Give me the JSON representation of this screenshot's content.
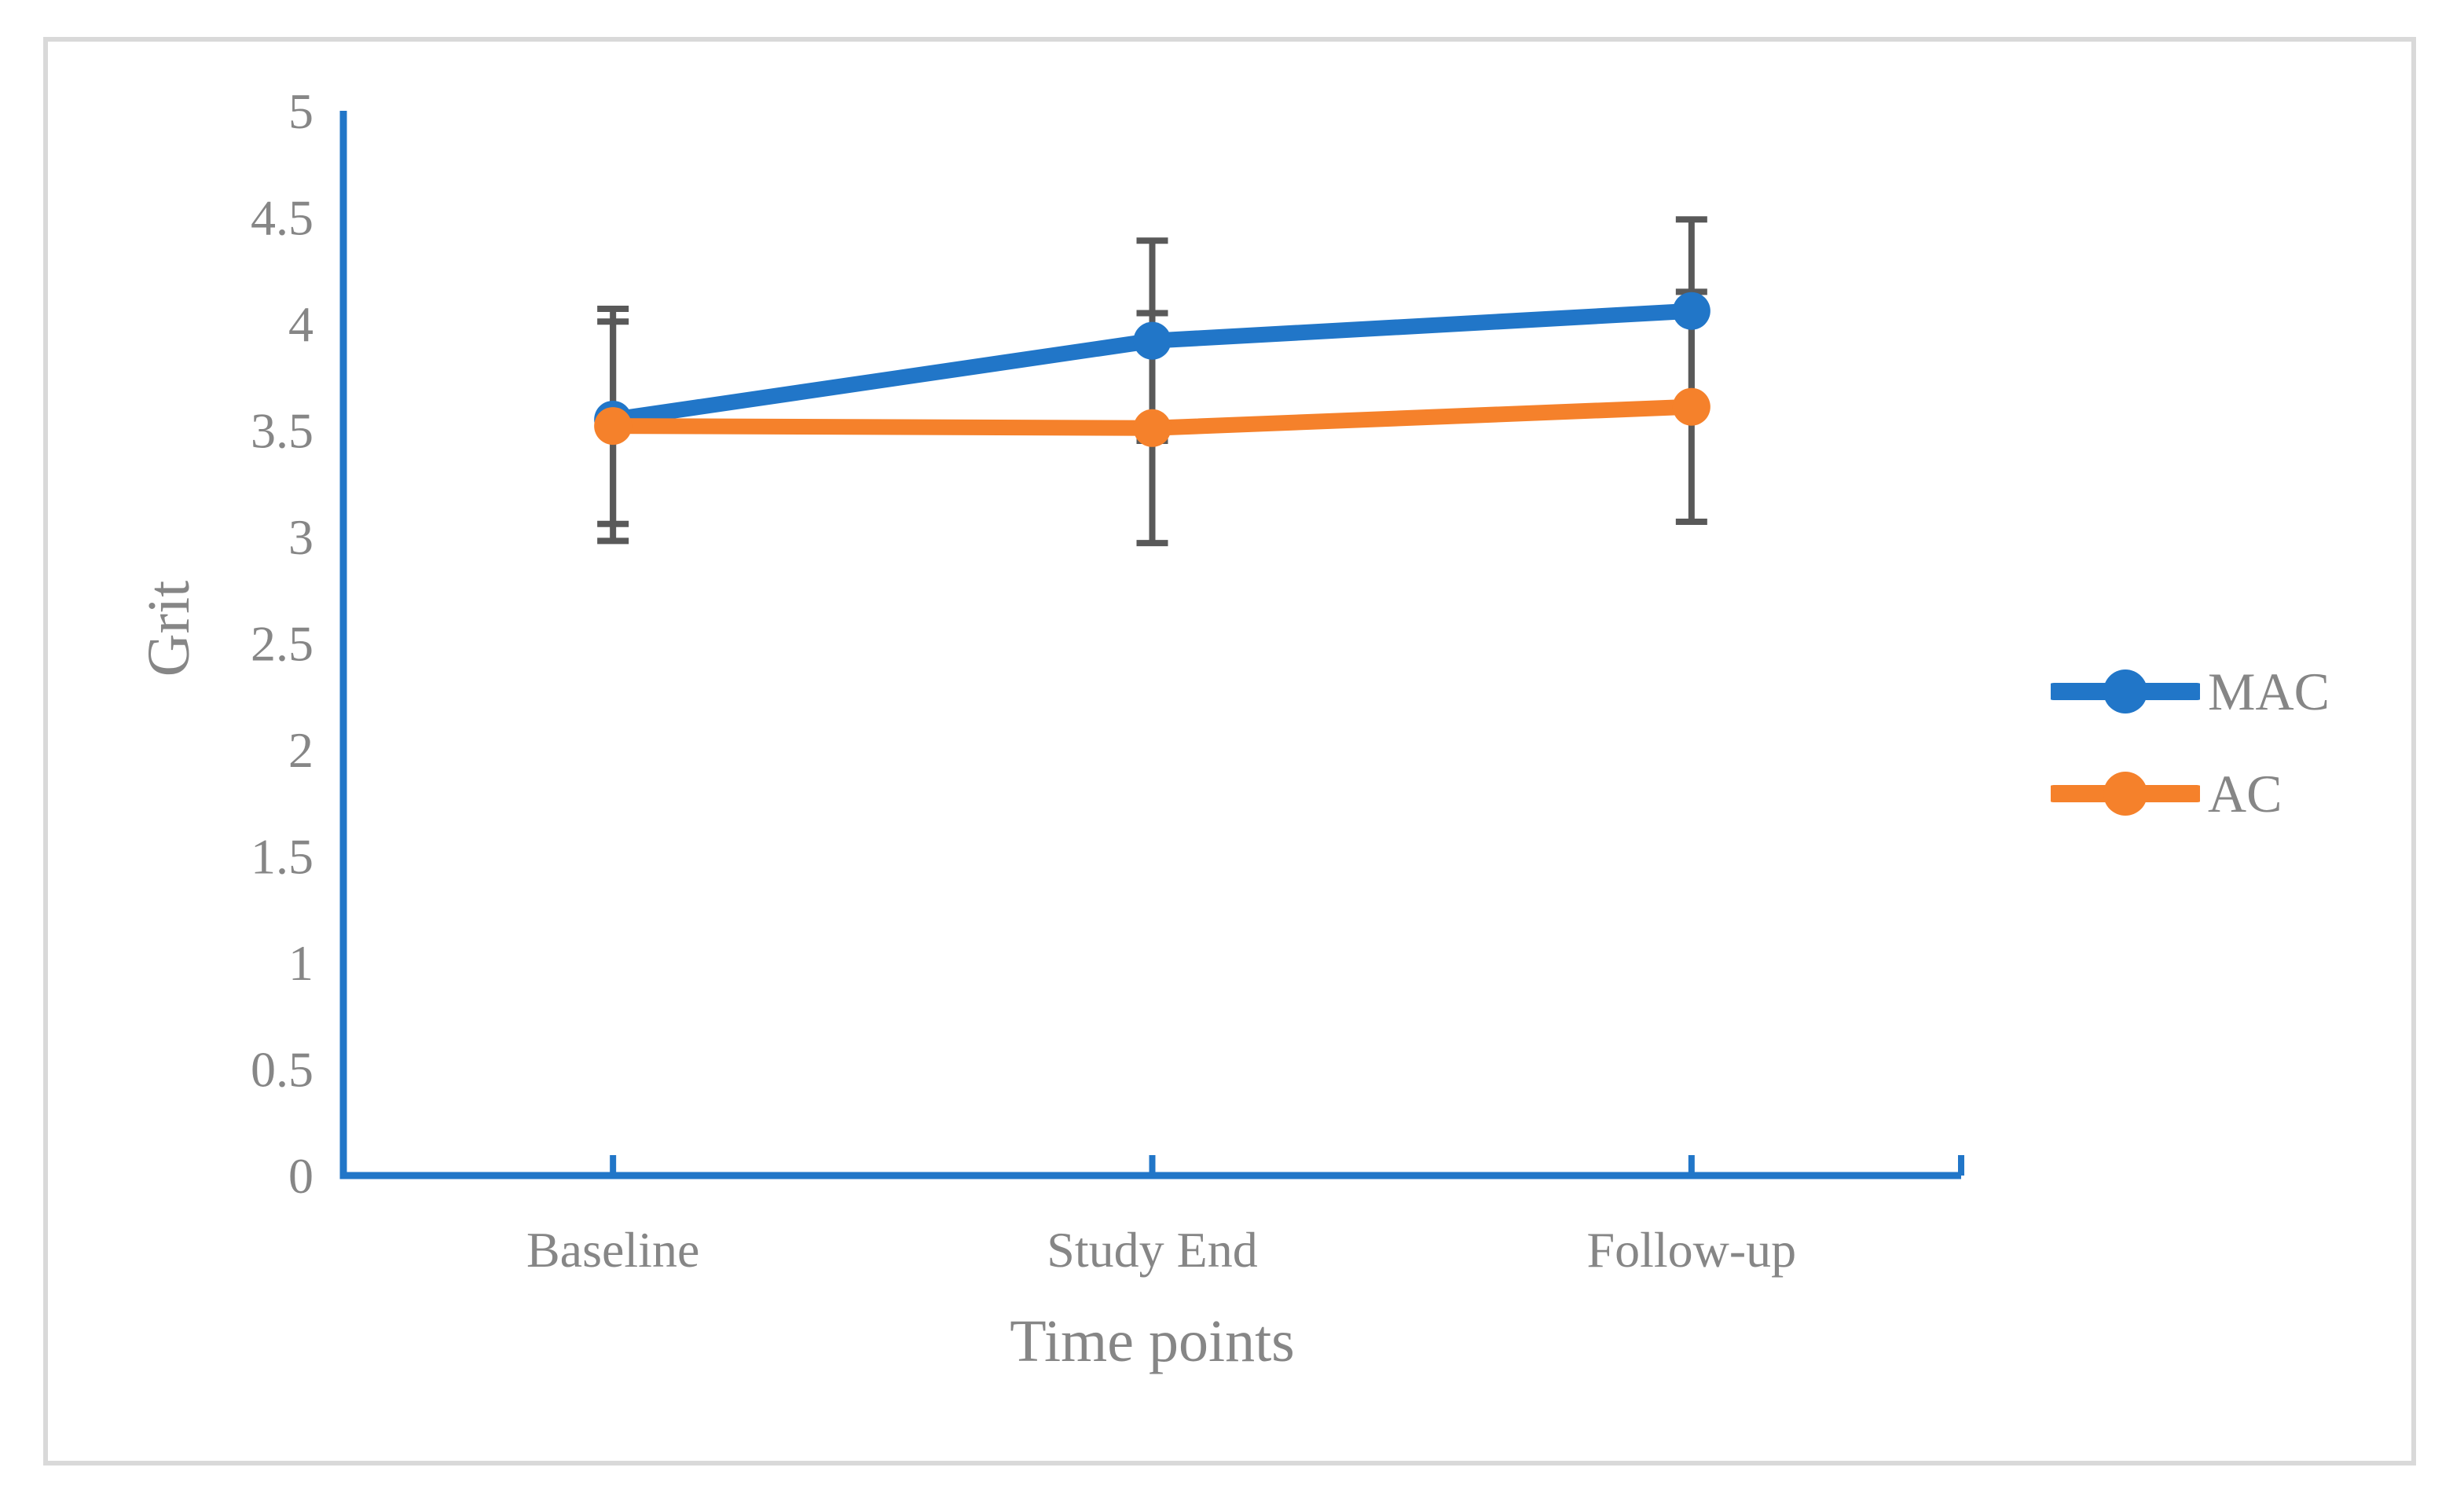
{
  "figure": {
    "background": "#FFFFFF",
    "border_color": "#D9D9D9"
  },
  "chart_data": {
    "type": "line",
    "title": "",
    "categories": [
      "Baseline",
      "Study End",
      "Follow-up"
    ],
    "series": [
      {
        "name": "MAC",
        "color": "#2176C8",
        "values": [
          3.55,
          3.92,
          4.06
        ],
        "error_high": [
          4.07,
          4.39,
          4.49
        ],
        "error_low": [
          3.06,
          3.45,
          3.63
        ]
      },
      {
        "name": "AC",
        "color": "#F5812B",
        "values": [
          3.52,
          3.51,
          3.61
        ],
        "error_high": [
          4.01,
          4.05,
          4.15
        ],
        "error_low": [
          2.98,
          2.97,
          3.07
        ]
      }
    ],
    "xlabel": "Time points",
    "ylabel": "Grit",
    "ylim": [
      0,
      5
    ],
    "ytick_step": 0.5,
    "yticks": [
      0,
      0.5,
      1,
      1.5,
      2,
      2.5,
      3,
      3.5,
      4,
      4.5,
      5
    ],
    "grid": false,
    "legend_position": "right-middle",
    "axis_color": "#2176C8",
    "error_bar_color": "#595959",
    "label_color": "#868686",
    "marker": "circle"
  }
}
